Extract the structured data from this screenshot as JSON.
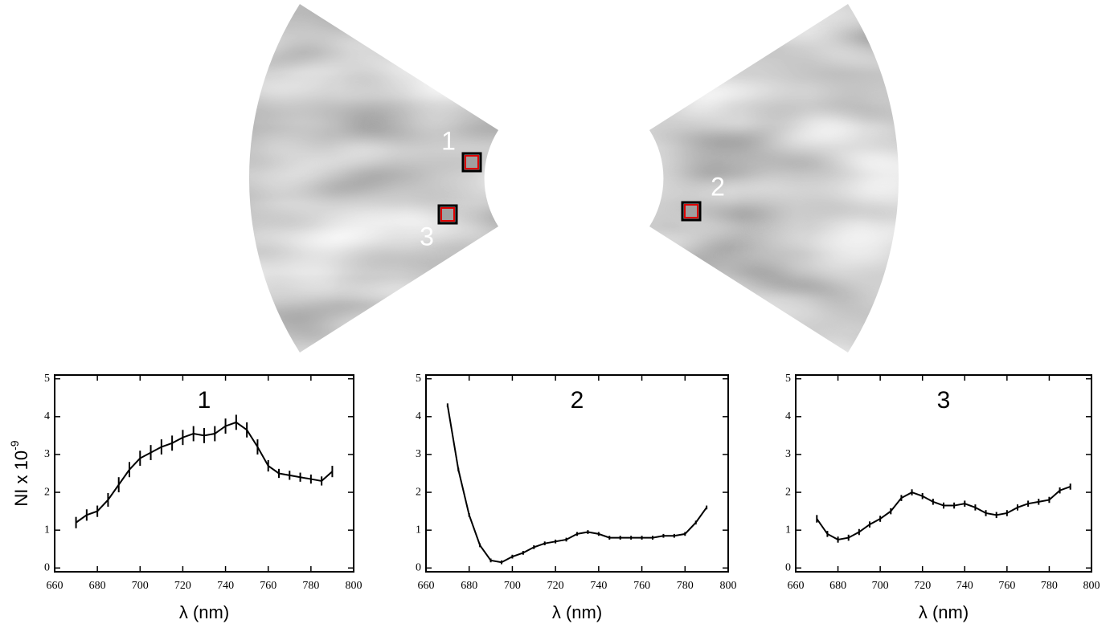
{
  "regions": [
    "1",
    "2",
    "3"
  ],
  "chart_data": [
    {
      "type": "line",
      "title": "1",
      "xlabel": "λ (nm)",
      "ylabel": "NI x 10",
      "ylabel_exponent": "-9",
      "x": [
        670,
        675,
        680,
        685,
        690,
        695,
        700,
        705,
        710,
        715,
        720,
        725,
        730,
        735,
        740,
        745,
        750,
        755,
        760,
        765,
        770,
        775,
        780,
        785,
        790
      ],
      "values": [
        1.2,
        1.4,
        1.5,
        1.8,
        2.2,
        2.6,
        2.9,
        3.05,
        3.2,
        3.3,
        3.45,
        3.55,
        3.5,
        3.55,
        3.75,
        3.85,
        3.65,
        3.2,
        2.7,
        2.5,
        2.45,
        2.4,
        2.35,
        2.3,
        2.55
      ],
      "errors": [
        0.15,
        0.15,
        0.15,
        0.18,
        0.2,
        0.2,
        0.2,
        0.2,
        0.2,
        0.2,
        0.2,
        0.2,
        0.2,
        0.2,
        0.2,
        0.2,
        0.2,
        0.2,
        0.15,
        0.12,
        0.12,
        0.12,
        0.12,
        0.12,
        0.15
      ],
      "color": "#000000",
      "xlim": [
        660,
        800
      ],
      "ylim": [
        -0.1,
        5.1
      ],
      "xticks": [
        660,
        680,
        700,
        720,
        740,
        760,
        780,
        800
      ],
      "yticks": [
        0,
        1,
        2,
        3,
        4,
        5
      ]
    },
    {
      "type": "line",
      "title": "2",
      "xlabel": "λ (nm)",
      "x": [
        670,
        675,
        680,
        685,
        690,
        695,
        700,
        705,
        710,
        715,
        720,
        725,
        730,
        735,
        740,
        745,
        750,
        755,
        760,
        765,
        770,
        775,
        780,
        785,
        790
      ],
      "values": [
        4.3,
        2.6,
        1.4,
        0.6,
        0.2,
        0.15,
        0.3,
        0.4,
        0.55,
        0.65,
        0.7,
        0.75,
        0.9,
        0.95,
        0.9,
        0.8,
        0.8,
        0.8,
        0.8,
        0.8,
        0.85,
        0.85,
        0.9,
        1.2,
        1.6
      ],
      "errors": [
        0.05,
        0.05,
        0.05,
        0.05,
        0.05,
        0.05,
        0.05,
        0.05,
        0.05,
        0.05,
        0.05,
        0.05,
        0.05,
        0.05,
        0.05,
        0.05,
        0.05,
        0.05,
        0.05,
        0.05,
        0.05,
        0.05,
        0.05,
        0.05,
        0.05
      ],
      "color": "#000000",
      "xlim": [
        660,
        800
      ],
      "ylim": [
        -0.1,
        5.1
      ],
      "xticks": [
        660,
        680,
        700,
        720,
        740,
        760,
        780,
        800
      ],
      "yticks": [
        0,
        1,
        2,
        3,
        4,
        5
      ]
    },
    {
      "type": "line",
      "title": "3",
      "xlabel": "λ (nm)",
      "x": [
        670,
        675,
        680,
        685,
        690,
        695,
        700,
        705,
        710,
        715,
        720,
        725,
        730,
        735,
        740,
        745,
        750,
        755,
        760,
        765,
        770,
        775,
        780,
        785,
        790
      ],
      "values": [
        1.3,
        0.9,
        0.75,
        0.8,
        0.95,
        1.15,
        1.3,
        1.5,
        1.85,
        2.0,
        1.9,
        1.75,
        1.65,
        1.65,
        1.7,
        1.6,
        1.45,
        1.4,
        1.45,
        1.6,
        1.7,
        1.75,
        1.8,
        2.05,
        2.15
      ],
      "errors": [
        0.1,
        0.08,
        0.08,
        0.08,
        0.08,
        0.08,
        0.08,
        0.08,
        0.08,
        0.08,
        0.08,
        0.08,
        0.08,
        0.08,
        0.08,
        0.08,
        0.08,
        0.08,
        0.08,
        0.08,
        0.08,
        0.08,
        0.08,
        0.08,
        0.08
      ],
      "color": "#000000",
      "xlim": [
        660,
        800
      ],
      "ylim": [
        -0.1,
        5.1
      ],
      "xticks": [
        660,
        680,
        700,
        720,
        740,
        760,
        780,
        800
      ],
      "yticks": [
        0,
        1,
        2,
        3,
        4,
        5
      ]
    }
  ]
}
